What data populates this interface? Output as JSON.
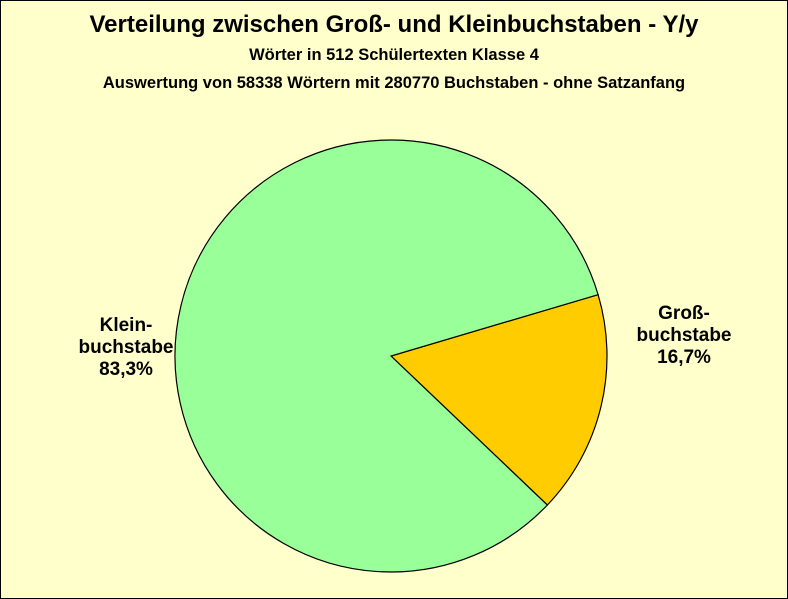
{
  "chart_data": {
    "type": "pie",
    "title": "Verteilung zwischen Groß- und  Kleinbuchstaben - Y/y",
    "subtitle_1": "Wörter in 512 Schülertexten Klasse 4",
    "subtitle_2": "Auswertung von 58338 Wörtern mit 280770 Buchstaben - ohne Satzanfang",
    "slices": [
      {
        "label_line1": "Groß-",
        "label_line2": "buchstabe",
        "value_text": "16,7%",
        "value": 16.7,
        "color": "#ffcc00"
      },
      {
        "label_line1": "Klein-",
        "label_line2": "buchstabe",
        "value_text": "83,3%",
        "value": 83.3,
        "color": "#99ff99"
      }
    ]
  }
}
